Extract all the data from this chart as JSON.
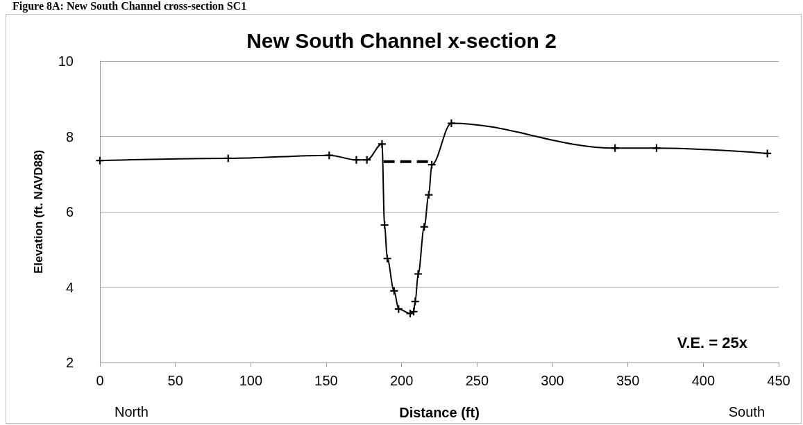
{
  "chart_data": {
    "type": "line",
    "title": "New South Channel x-section 2",
    "xlabel": "Distance (ft)",
    "ylabel": "Elevation (ft. NAVD88)",
    "annotations": [
      "Figure 8A: New South Channel cross-section SC1",
      "V.E. = 25x",
      "North",
      "South"
    ],
    "xlim": [
      0,
      450
    ],
    "xticks": [
      0,
      50,
      100,
      150,
      200,
      250,
      300,
      350,
      400,
      450
    ],
    "ylim": [
      2,
      10
    ],
    "yticks": [
      2,
      4,
      6,
      8,
      10
    ],
    "grid": "y",
    "series": [
      {
        "color": "#000000",
        "marker": "cross",
        "line_style": "solid",
        "x": [
          0,
          85,
          152,
          170,
          177,
          187,
          188.7,
          190.5,
          195,
          198,
          205.7,
          208,
          209,
          211,
          215,
          218,
          220,
          233,
          341.5,
          369,
          442.5
        ],
        "values": [
          7.36,
          7.42,
          7.5,
          7.38,
          7.38,
          7.8,
          5.65,
          4.76,
          3.9,
          3.42,
          3.3,
          3.35,
          3.62,
          4.35,
          5.6,
          6.45,
          7.25,
          8.35,
          7.69,
          7.69,
          7.55
        ]
      },
      {
        "color": "#000000",
        "marker": "none",
        "line_style": "dashed",
        "x": [
          188,
          220
        ],
        "values": [
          7.33,
          7.33
        ]
      }
    ]
  }
}
